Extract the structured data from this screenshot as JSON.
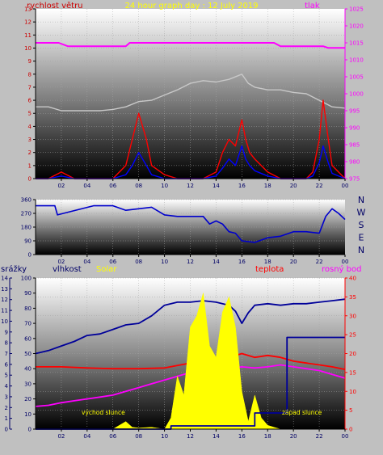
{
  "chart_data": [
    {
      "type": "line",
      "title": "24 hour graph day : 12 July 2019",
      "left_label": "rychlost větru",
      "right_label": "tlak",
      "x_ticks": [
        "02",
        "04",
        "06",
        "08",
        "10",
        "12",
        "14",
        "16",
        "18",
        "20",
        "22",
        "00"
      ],
      "x_range": [
        0,
        24
      ],
      "ylim_left": [
        0,
        13
      ],
      "yticks_left": [
        "0",
        "1",
        "2",
        "3",
        "4",
        "5",
        "6",
        "7",
        "8",
        "9",
        "10",
        "11",
        "12",
        "13"
      ],
      "ylim_right": [
        975,
        1025
      ],
      "yticks_right": [
        "975",
        "980",
        "985",
        "990",
        "995",
        "1000",
        "1005",
        "1010",
        "1015",
        "1020",
        "1025"
      ],
      "series": [
        {
          "name": "tlak",
          "axis": "right",
          "color": "#ff00ff",
          "x": [
            0,
            1.8,
            2.5,
            7,
            7.3,
            14,
            14.3,
            18.5,
            19,
            22.3,
            22.7,
            24
          ],
          "y": [
            1015,
            1015,
            1014,
            1014,
            1015,
            1015,
            1015,
            1015,
            1014,
            1014,
            1013.5,
            1013.5
          ]
        },
        {
          "name": "",
          "axis": "left",
          "color": "#c8c8c8",
          "x": [
            0,
            1,
            2,
            3,
            4,
            5,
            6,
            7,
            8,
            9,
            10,
            11,
            12,
            13,
            14,
            15,
            16,
            16.5,
            17,
            18,
            19,
            20,
            21,
            22,
            23,
            24
          ],
          "y": [
            5.5,
            5.5,
            5.2,
            5.2,
            5.2,
            5.2,
            5.3,
            5.5,
            5.9,
            6.0,
            6.4,
            6.8,
            7.3,
            7.5,
            7.4,
            7.6,
            8.0,
            7.3,
            7.0,
            6.8,
            6.8,
            6.6,
            6.5,
            6.0,
            5.5,
            5.4
          ]
        },
        {
          "name": "",
          "axis": "left",
          "color": "#ff0000",
          "x": [
            0,
            1,
            2,
            3,
            4,
            5,
            6,
            7,
            7.5,
            8,
            8.3,
            8.6,
            9,
            10,
            11,
            12,
            13,
            14,
            14.5,
            15,
            15.5,
            16,
            16.3,
            16.6,
            17,
            18,
            19,
            20,
            21,
            21.5,
            22,
            22.3,
            22.7,
            23,
            24
          ],
          "y": [
            0,
            0,
            0.5,
            0,
            0,
            0,
            0,
            1,
            3,
            5,
            4,
            3,
            1,
            0.3,
            0,
            0,
            0,
            0.5,
            2,
            3,
            2.5,
            4.5,
            3,
            2,
            1.5,
            0.5,
            0,
            0,
            0,
            0.5,
            3,
            6,
            3,
            1,
            0
          ]
        },
        {
          "name": "",
          "axis": "left",
          "color": "#0000ff",
          "x": [
            0,
            1,
            2,
            3,
            4,
            5,
            6,
            7,
            7.5,
            8,
            8.3,
            8.6,
            9,
            10,
            11,
            12,
            13,
            14,
            14.5,
            15,
            15.5,
            16,
            16.3,
            16.6,
            17,
            18,
            19,
            20,
            21,
            21.5,
            22,
            22.3,
            22.7,
            23,
            24
          ],
          "y": [
            0,
            0,
            0.2,
            0,
            0,
            0,
            0,
            0.3,
            1,
            2,
            1.5,
            1,
            0.3,
            0,
            0,
            0,
            0,
            0.2,
            0.8,
            1.5,
            1,
            2.5,
            1.5,
            1,
            0.6,
            0.2,
            0,
            0,
            0,
            0.2,
            1.2,
            2.5,
            1.2,
            0.4,
            0
          ]
        }
      ]
    },
    {
      "type": "line",
      "x_ticks": [
        "02",
        "04",
        "06",
        "08",
        "10",
        "12",
        "14",
        "16",
        "18",
        "20",
        "22",
        "00"
      ],
      "x_range": [
        0,
        24
      ],
      "ylim": [
        0,
        360
      ],
      "yticks": [
        "0",
        "90",
        "180",
        "270",
        "360"
      ],
      "compass_labels": [
        "N",
        "W",
        "S",
        "E",
        "N"
      ],
      "series": [
        {
          "name": "",
          "color": "#0000cc",
          "x": [
            0,
            1.5,
            1.7,
            4.5,
            6,
            7,
            8,
            9,
            10,
            11,
            12,
            13,
            13.5,
            14,
            14.5,
            15,
            15.5,
            16,
            17,
            18,
            19,
            20,
            21,
            22,
            22.5,
            23,
            23.5,
            24
          ],
          "y": [
            320,
            320,
            260,
            320,
            320,
            290,
            300,
            310,
            260,
            250,
            250,
            250,
            200,
            220,
            200,
            150,
            140,
            90,
            80,
            110,
            120,
            150,
            150,
            140,
            250,
            300,
            270,
            230
          ]
        }
      ]
    },
    {
      "type": "line",
      "left_labels": [
        "srážky",
        "vlhkost",
        "Solar"
      ],
      "right_labels": [
        "teplota",
        "rosný bod"
      ],
      "x_ticks": [
        "02",
        "04",
        "06",
        "08",
        "10",
        "12",
        "14",
        "16",
        "18",
        "20",
        "22",
        "00"
      ],
      "x_range": [
        0,
        24
      ],
      "ylim_rain": [
        0,
        14
      ],
      "yticks_rain": [
        "0",
        "1",
        "2",
        "3",
        "4",
        "5",
        "6",
        "7",
        "8",
        "9",
        "10",
        "11",
        "12",
        "13",
        "14"
      ],
      "ylim_humidity": [
        0,
        100
      ],
      "yticks_humidity": [
        "0",
        "10",
        "20",
        "30",
        "40",
        "50",
        "60",
        "70",
        "80",
        "90",
        "100"
      ],
      "ylim_temp": [
        0,
        40
      ],
      "yticks_temp": [
        "0",
        "5",
        "10",
        "15",
        "20",
        "25",
        "30",
        "35",
        "40"
      ],
      "annotations": [
        "východ slunce",
        "západ slunce"
      ],
      "series": [
        {
          "name": "vlhkost",
          "axis": "humidity",
          "color": "#000099",
          "x": [
            0,
            1,
            2,
            3,
            4,
            5,
            6,
            7,
            8,
            9,
            10,
            11,
            12,
            13,
            14,
            15,
            15.5,
            16,
            16.5,
            17,
            18,
            19,
            20,
            21,
            22,
            23,
            24
          ],
          "y": [
            50,
            52,
            55,
            58,
            62,
            63,
            66,
            69,
            70,
            75,
            82,
            84,
            84,
            85,
            84,
            82,
            78,
            70,
            77,
            82,
            83,
            82,
            83,
            83,
            84,
            85,
            86
          ]
        },
        {
          "name": "teplota",
          "axis": "temp",
          "color": "#ff0000",
          "x": [
            0,
            2,
            4,
            6,
            8,
            10,
            12,
            13,
            14,
            15,
            16,
            17,
            18,
            19,
            20,
            21,
            22,
            23,
            24
          ],
          "y": [
            16.5,
            16.5,
            16.2,
            16.0,
            16.0,
            16.2,
            17.5,
            18.0,
            18.5,
            19.0,
            20.0,
            19.0,
            19.5,
            19.0,
            18.0,
            17.5,
            17.0,
            16.5,
            15.8
          ]
        },
        {
          "name": "rosný bod",
          "axis": "temp",
          "color": "#ff00ff",
          "x": [
            0,
            1,
            2,
            3,
            4,
            5,
            6,
            7,
            8,
            9,
            10,
            11,
            12,
            13,
            14,
            15,
            16,
            17,
            18,
            19,
            20,
            21,
            22,
            23,
            24
          ],
          "y": [
            6.0,
            6.3,
            7.0,
            7.5,
            8.0,
            8.5,
            9.0,
            10.0,
            11.0,
            12.0,
            13.0,
            14.0,
            15.0,
            15.5,
            16.0,
            16.0,
            16.5,
            16.2,
            16.5,
            17.0,
            16.5,
            16.0,
            15.5,
            14.5,
            13.5
          ]
        },
        {
          "name": "Solar",
          "axis": "temp",
          "color": "#ffff00",
          "x": [
            6,
            6.5,
            7,
            7.5,
            8,
            9,
            10,
            10.5,
            11,
            11.5,
            12,
            12.5,
            13,
            13.5,
            14,
            14.5,
            15,
            15.5,
            16,
            16.5,
            17,
            17.5,
            18,
            18.5,
            19
          ],
          "y": [
            0,
            1,
            2,
            0.5,
            0.3,
            0.5,
            0,
            3,
            14,
            9,
            27,
            30,
            36,
            22,
            19,
            31,
            35,
            27,
            10,
            2,
            9,
            3,
            1,
            0.5,
            0
          ]
        },
        {
          "name": "srážky",
          "axis": "rain",
          "color": "#000099",
          "x": [
            0,
            10.5,
            10.5,
            17,
            17,
            19.5,
            19.5,
            24
          ],
          "y": [
            0,
            0,
            0.3,
            0.3,
            1.5,
            1.5,
            8.5,
            8.5
          ]
        }
      ]
    }
  ]
}
